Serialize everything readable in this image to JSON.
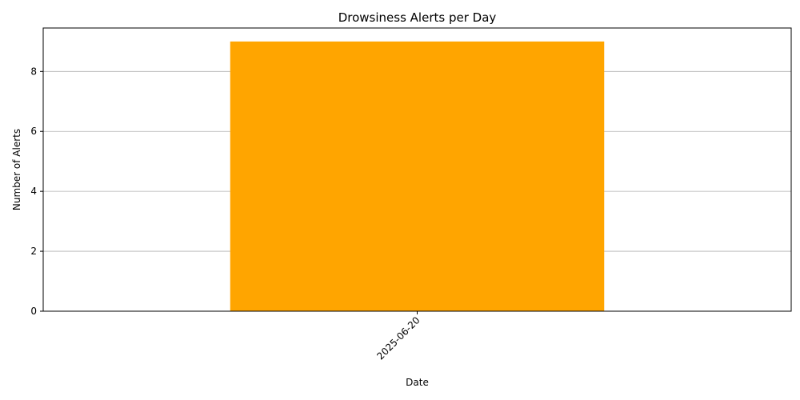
{
  "colors": {
    "bar": "#ffa500",
    "grid": "#b0b0b0",
    "axis": "#000000",
    "background": "#ffffff"
  },
  "chart_data": {
    "type": "bar",
    "title": "Drowsiness Alerts per Day",
    "xlabel": "Date",
    "ylabel": "Number of Alerts",
    "categories": [
      "2025-06-20"
    ],
    "values": [
      9
    ],
    "ylim": [
      0,
      9.45
    ],
    "yticks": [
      0,
      2,
      4,
      6,
      8
    ],
    "grid": "y-only",
    "legend": "none",
    "xtick_rotation": 45
  }
}
